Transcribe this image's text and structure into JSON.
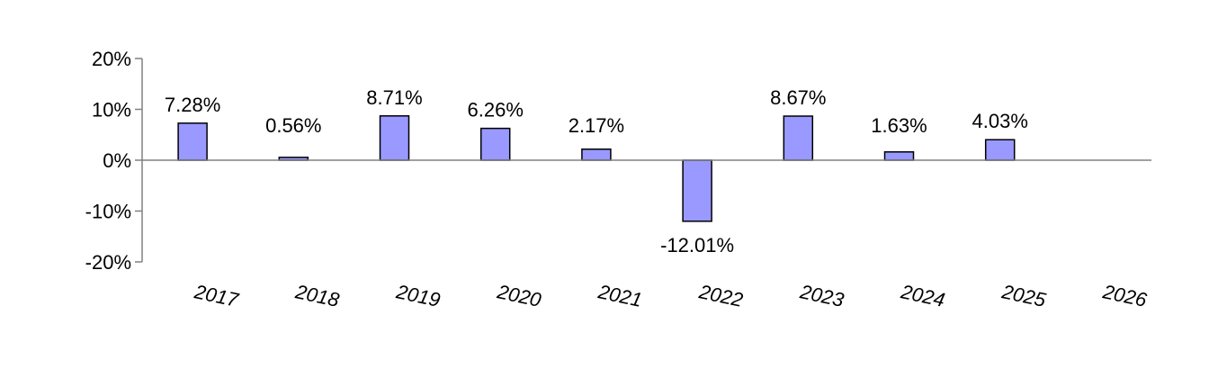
{
  "chart_data": {
    "type": "bar",
    "categories": [
      "2017",
      "2018",
      "2019",
      "2020",
      "2021",
      "2022",
      "2023",
      "2024",
      "2025",
      "2026"
    ],
    "values": [
      7.28,
      0.56,
      8.71,
      6.26,
      2.17,
      -12.01,
      8.67,
      1.63,
      4.03,
      null
    ],
    "data_labels": [
      "7.28%",
      "0.56%",
      "8.71%",
      "6.26%",
      "2.17%",
      "-12.01%",
      "8.67%",
      "1.63%",
      "4.03%",
      ""
    ],
    "y_ticks": [
      20,
      10,
      0,
      -10,
      -20
    ],
    "y_tick_labels": [
      "20%",
      "10%",
      "0%",
      "-10%",
      "-20%"
    ],
    "ylim": [
      -20,
      20
    ],
    "title": "",
    "xlabel": "",
    "ylabel": "",
    "grid": false,
    "legend": "none",
    "colors": {
      "bar_fill": "#9999ff",
      "bar_stroke": "#000000",
      "axis": "#808080"
    }
  }
}
